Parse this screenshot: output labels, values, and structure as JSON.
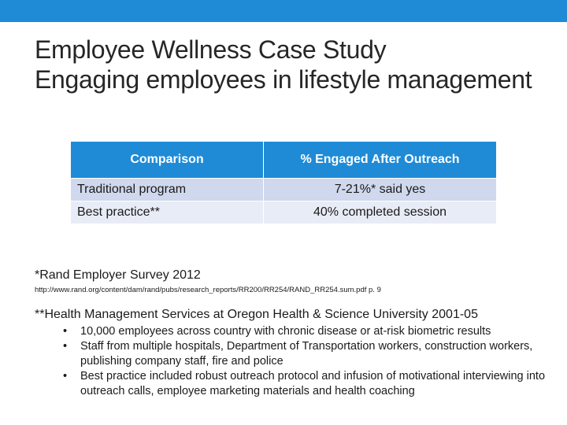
{
  "title": {
    "line1": "Employee Wellness Case Study",
    "line2": "Engaging employees in lifestyle management"
  },
  "table": {
    "headers": [
      "Comparison",
      "% Engaged After Outreach"
    ],
    "rows": [
      [
        "Traditional program",
        "7-21%* said yes"
      ],
      [
        "Best practice**",
        "40% completed session"
      ]
    ]
  },
  "footnote1": {
    "text": "*Rand Employer Survey 2012",
    "url": "http://www.rand.org/content/dam/rand/pubs/research_reports/RR200/RR254/RAND_RR254.sum.pdf p. 9"
  },
  "footnote2": {
    "text": "**Health Management Services at Oregon Health & Science University 2001-05",
    "bullets": [
      "10,000 employees across country with chronic disease or at-risk biometric results",
      "Staff from multiple hospitals, Department of Transportation workers, construction workers, publishing company staff, fire and police",
      "Best practice included robust outreach protocol and infusion of motivational interviewing into outreach calls, employee marketing materials and health coaching"
    ]
  },
  "colors": {
    "accent": "#1f8bd6",
    "row_odd": "#cfd8ec",
    "row_even": "#e8ecf6"
  }
}
